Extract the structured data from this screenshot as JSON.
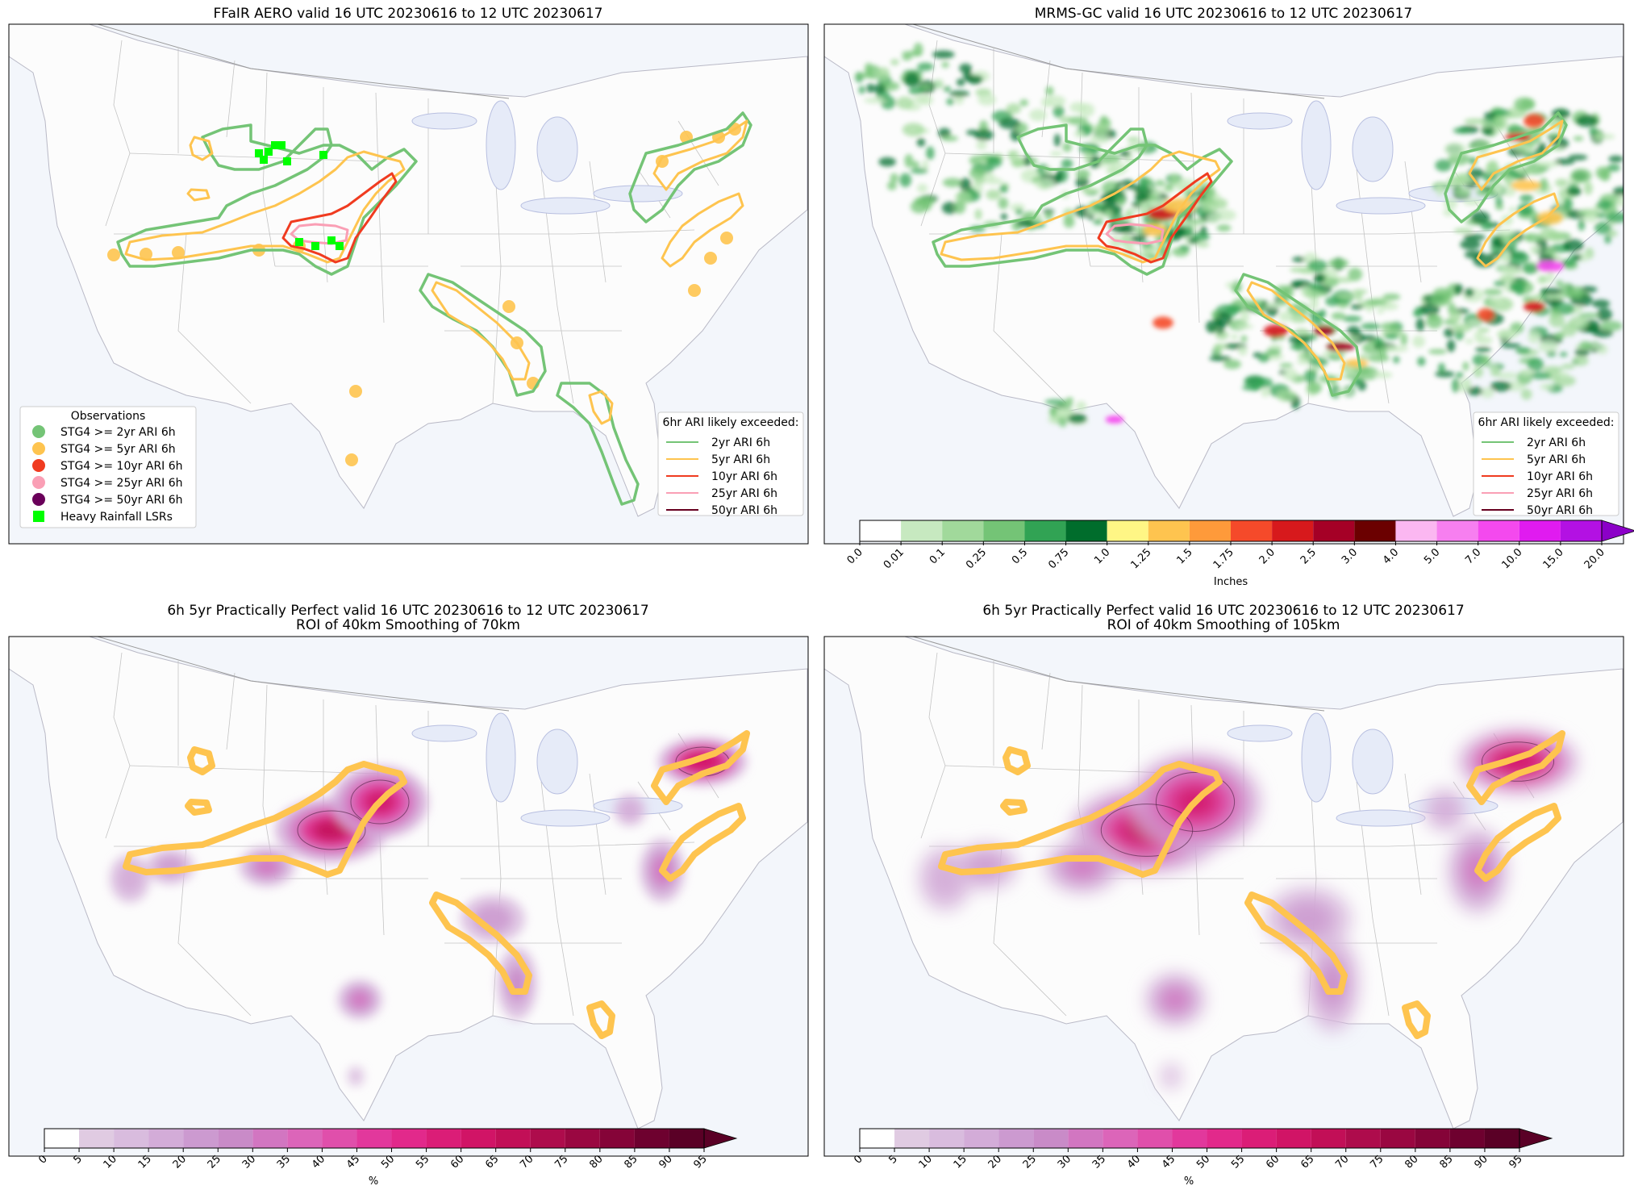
{
  "colors": {
    "ari_2yr": "#74c476",
    "ari_5yr": "#fec44f",
    "ari_10yr": "#f03b20",
    "ari_25yr": "#fa9fb5",
    "ari_50yr": "#67001f",
    "lsr": "#00ff00",
    "ocean": "#f3f6fb",
    "land": "#fcfcfc",
    "lakes": "#e6ebf8"
  },
  "panels": [
    {
      "title": "FFaIR AERO valid 16 UTC 20230616 to 12 UTC 20230617",
      "obs_legend": {
        "title": "Observations",
        "items": [
          "STG4 >= 2yr ARI 6h",
          "STG4 >= 5yr ARI 6h",
          "STG4 >= 10yr ARI 6h",
          "STG4 >= 25yr ARI 6h",
          "STG4 >= 50yr ARI 6h",
          "Heavy Rainfall LSRs"
        ],
        "colors": [
          "#74c476",
          "#fec44f",
          "#f03b20",
          "#fa9fb5",
          "#6a005a",
          "#00ff00"
        ]
      },
      "ari_legend": {
        "title": "6hr ARI likely exceeded:",
        "items": [
          "2yr ARI 6h",
          "5yr ARI 6h",
          "10yr ARI 6h",
          "25yr ARI 6h",
          "50yr ARI 6h"
        ],
        "colors": [
          "#74c476",
          "#fec44f",
          "#f03b20",
          "#fa9fb5",
          "#67001f"
        ]
      }
    },
    {
      "title": "MRMS-GC valid 16 UTC 20230616 to 12 UTC 20230617",
      "ari_legend": {
        "title": "6hr ARI likely exceeded:",
        "items": [
          "2yr ARI 6h",
          "5yr ARI 6h",
          "10yr ARI 6h",
          "25yr ARI 6h",
          "50yr ARI 6h"
        ],
        "colors": [
          "#74c476",
          "#fec44f",
          "#f03b20",
          "#fa9fb5",
          "#67001f"
        ]
      },
      "colorbar": {
        "ticks": [
          "0.0",
          "0.01",
          "0.1",
          "0.25",
          "0.5",
          "0.75",
          "1.0",
          "1.25",
          "1.5",
          "1.75",
          "2.0",
          "2.5",
          "3.0",
          "4.0",
          "5.0",
          "7.0",
          "10.0",
          "15.0",
          "20.0"
        ],
        "colors": [
          "#ffffff",
          "#c7e9c0",
          "#a1d99b",
          "#74c476",
          "#31a354",
          "#006d2c",
          "#fff685",
          "#fec44f",
          "#fe9a3a",
          "#f54a2a",
          "#d7191c",
          "#a50026",
          "#6b0000",
          "#fbb7f1",
          "#f77ff0",
          "#f449ee",
          "#e01bf0",
          "#b311e3"
        ],
        "label": "Inches"
      }
    },
    {
      "title": "6h 5yr Practically Perfect valid 16 UTC 20230616 to 12 UTC 20230617",
      "subtitle": "ROI of 40km Smoothing of 70km",
      "colorbar": {
        "ticks": [
          "0",
          "5",
          "10",
          "15",
          "20",
          "25",
          "30",
          "35",
          "40",
          "45",
          "50",
          "55",
          "60",
          "65",
          "70",
          "75",
          "80",
          "85",
          "90",
          "95"
        ],
        "label": "%"
      }
    },
    {
      "title": "6h 5yr Practically Perfect valid 16 UTC 20230616 to 12 UTC 20230617",
      "subtitle": "ROI of 40km Smoothing of 105km",
      "colorbar": {
        "ticks": [
          "0",
          "5",
          "10",
          "15",
          "20",
          "25",
          "30",
          "35",
          "40",
          "45",
          "50",
          "55",
          "60",
          "65",
          "70",
          "75",
          "80",
          "85",
          "90",
          "95"
        ],
        "label": "%"
      }
    }
  ],
  "pp_colors": [
    "#ffffff",
    "#e0cbe2",
    "#d9bcde",
    "#d3acd8",
    "#cc9ad0",
    "#c98bc8",
    "#d276c1",
    "#dc65b9",
    "#e04fab",
    "#e2389c",
    "#e2298b",
    "#db1d77",
    "#d11466",
    "#c20f57",
    "#ae0c4c",
    "#9a0741",
    "#850438",
    "#6e012f",
    "#5a0026"
  ]
}
